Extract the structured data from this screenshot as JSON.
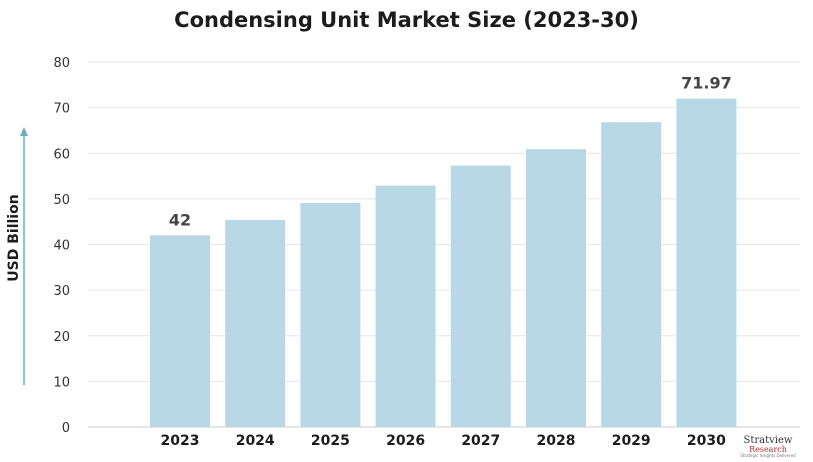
{
  "chart_data": {
    "type": "bar",
    "title": "Condensing Unit Market Size (2023-30)",
    "ylabel": "USD Billion",
    "xlabel": "",
    "categories": [
      "2023",
      "2024",
      "2025",
      "2026",
      "2027",
      "2028",
      "2029",
      "2030"
    ],
    "values": [
      42,
      45.4,
      49.1,
      52.9,
      57.3,
      60.9,
      66.8,
      71.97
    ],
    "data_labels": {
      "0": "42",
      "7": "71.97"
    },
    "ylim": [
      0,
      80
    ],
    "yticks": [
      0,
      10,
      20,
      30,
      40,
      50,
      60,
      70,
      80
    ],
    "grid": true,
    "bar_color": "#b7d8e4",
    "axis_arrow_color": "#6aaec4"
  },
  "logo": {
    "name": "Stratview",
    "sub": "Research",
    "tag": "Strategic Insights Delivered"
  }
}
